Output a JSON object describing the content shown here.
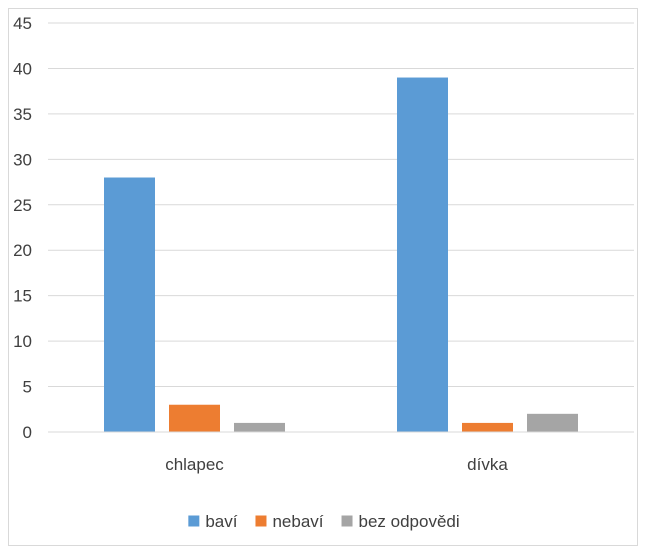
{
  "chart_data": {
    "type": "bar",
    "title": "",
    "xlabel": "",
    "ylabel": "",
    "categories": [
      "chlapec",
      "dívka"
    ],
    "series": [
      {
        "name": "baví",
        "values": [
          28,
          39
        ],
        "color": "#5b9bd5"
      },
      {
        "name": "nebaví",
        "values": [
          3,
          1
        ],
        "color": "#ed7d31"
      },
      {
        "name": "bez odpovědi",
        "values": [
          1,
          2
        ],
        "color": "#a5a5a5"
      }
    ],
    "ylim": [
      0,
      45
    ],
    "yticks": [
      0,
      5,
      10,
      15,
      20,
      25,
      30,
      35,
      40,
      45
    ],
    "grid": true,
    "legend_position": "bottom"
  }
}
